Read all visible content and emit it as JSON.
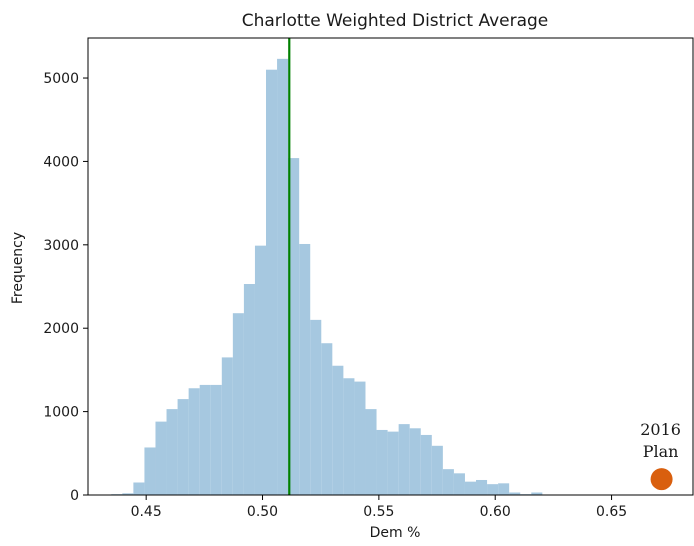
{
  "chart_data": {
    "type": "histogram",
    "title": "Charlotte Weighted District Average",
    "xlabel": "Dem %",
    "ylabel": "Frequency",
    "xlim": [
      0.425,
      0.685
    ],
    "ylim": [
      0,
      5480
    ],
    "x_ticks": [
      0.45,
      0.5,
      0.55,
      0.6,
      0.65
    ],
    "x_tick_labels": [
      "0.45",
      "0.50",
      "0.55",
      "0.60",
      "0.65"
    ],
    "y_ticks": [
      0,
      1000,
      2000,
      3000,
      4000,
      5000
    ],
    "y_tick_labels": [
      "0",
      "1000",
      "2000",
      "3000",
      "4000",
      "5000"
    ],
    "grid": false,
    "bar_color": "#a6c8e0",
    "bins": {
      "start": 0.435,
      "width": 0.00475,
      "counts": [
        10,
        20,
        150,
        570,
        880,
        1030,
        1150,
        1280,
        1320,
        1320,
        1650,
        2180,
        2530,
        2990,
        5100,
        5230,
        4040,
        3010,
        2100,
        1820,
        1550,
        1400,
        1360,
        1030,
        780,
        760,
        850,
        800,
        720,
        590,
        310,
        260,
        160,
        180,
        130,
        140,
        30,
        10,
        30
      ]
    },
    "reference_line": {
      "x": 0.5115,
      "color": "#008000"
    },
    "marker": {
      "x": 0.6715,
      "y": 190,
      "label_line1": "2016",
      "label_line2": "Plan",
      "color": "#d95f0e"
    }
  }
}
